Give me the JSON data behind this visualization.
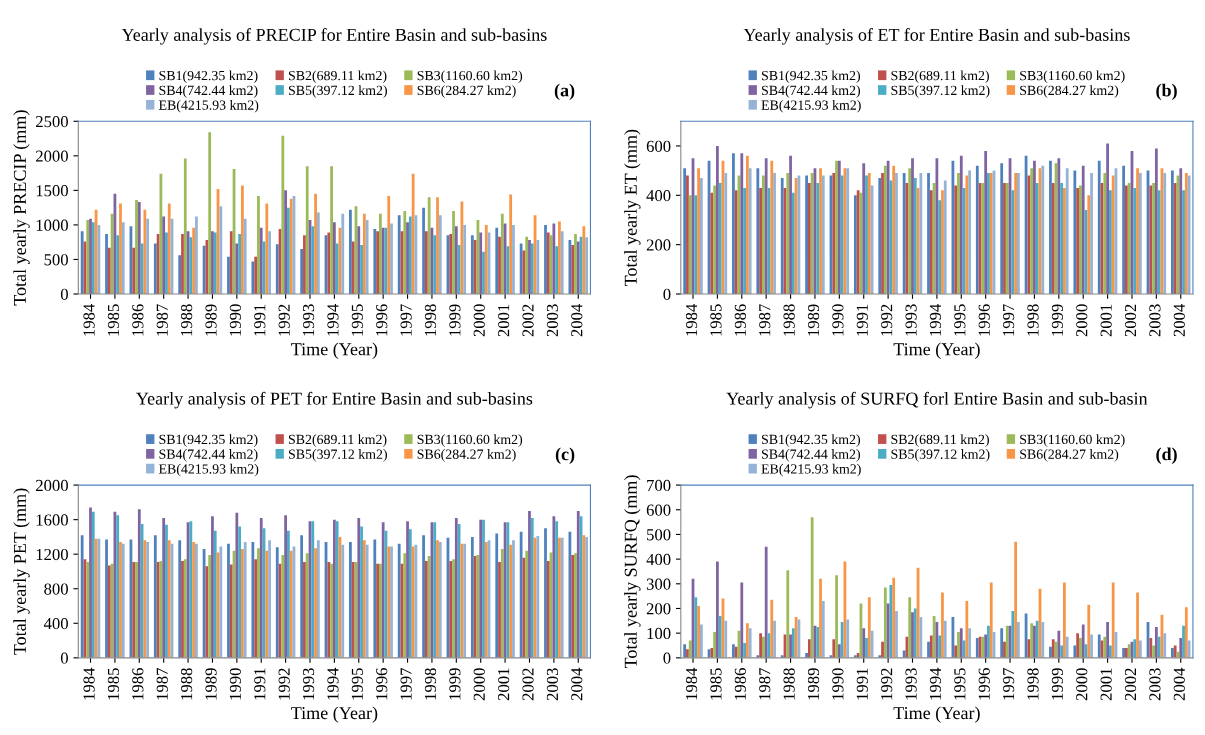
{
  "chart_data": [
    {
      "type": "bar",
      "title": "Yearly analysis of PRECIP for Entire Basin and sub-basins",
      "xlabel": "Time (Year)",
      "ylabel": "Total yearly PRECIP (mm)",
      "annotations": [
        "(a)"
      ],
      "legend": "top",
      "grid": false,
      "categories": [
        "1984",
        "1985",
        "1986",
        "1987",
        "1988",
        "1989",
        "1990",
        "1991",
        "1992",
        "1993",
        "1994",
        "1995",
        "1996",
        "1997",
        "1998",
        "1999",
        "2000",
        "2001",
        "2002",
        "2003",
        "2004"
      ],
      "ylim": [
        0,
        2500
      ],
      "yticks": [
        0,
        500,
        1000,
        1500,
        2000,
        2500
      ],
      "series": [
        {
          "name": "SB1(942.35 km2)",
          "color": "#4f81bd",
          "values": [
            910,
            870,
            980,
            730,
            560,
            700,
            540,
            470,
            720,
            650,
            850,
            1220,
            940,
            1140,
            1250,
            850,
            850,
            960,
            730,
            1000,
            780
          ]
        },
        {
          "name": "SB2(689.11 km2)",
          "color": "#c0504d",
          "values": [
            760,
            670,
            670,
            870,
            870,
            780,
            910,
            540,
            940,
            850,
            890,
            760,
            910,
            910,
            910,
            870,
            780,
            830,
            630,
            890,
            710
          ]
        },
        {
          "name": "SB3(1160.60 km2)",
          "color": "#9bbb59",
          "values": [
            1070,
            1160,
            1360,
            1740,
            1960,
            2340,
            1810,
            1420,
            2290,
            1850,
            1850,
            1270,
            1160,
            1200,
            1400,
            1200,
            1070,
            1160,
            830,
            850,
            870
          ]
        },
        {
          "name": "SB4(742.44 km2)",
          "color": "#8064a2",
          "values": [
            1090,
            1450,
            1330,
            1120,
            910,
            910,
            730,
            960,
            1500,
            1070,
            1040,
            980,
            960,
            1040,
            960,
            980,
            890,
            1020,
            780,
            1020,
            760
          ]
        },
        {
          "name": "SB5(397.12 km2)",
          "color": "#4bacc6",
          "values": [
            1040,
            850,
            730,
            890,
            820,
            890,
            870,
            760,
            1250,
            980,
            730,
            710,
            960,
            1120,
            850,
            710,
            610,
            690,
            730,
            690,
            830
          ]
        },
        {
          "name": "SB6(284.27 km2)",
          "color": "#f79646",
          "values": [
            1220,
            1310,
            1220,
            1310,
            960,
            1520,
            1570,
            1310,
            1380,
            1450,
            960,
            1160,
            1420,
            1740,
            1400,
            1340,
            1000,
            1440,
            1140,
            1050,
            980
          ]
        },
        {
          "name": "EB(4215.93 km2)",
          "color": "#95b3d7",
          "values": [
            1000,
            1040,
            1090,
            1090,
            1120,
            1270,
            1090,
            910,
            1420,
            1180,
            1160,
            1070,
            1020,
            1140,
            1140,
            1000,
            890,
            1000,
            780,
            910,
            820
          ]
        }
      ]
    },
    {
      "type": "bar",
      "title": "Yearly analysis of ET for Entire Basin and sub-basins",
      "xlabel": "Time (Year)",
      "ylabel": "Total yearly ET (mm)",
      "annotations": [
        "(b)"
      ],
      "legend": "top",
      "grid": false,
      "categories": [
        "1984",
        "1985",
        "1986",
        "1987",
        "1988",
        "1989",
        "1990",
        "1991",
        "1992",
        "1993",
        "1994",
        "1995",
        "1996",
        "1997",
        "1998",
        "1999",
        "2000",
        "2001",
        "2002",
        "2003",
        "2004"
      ],
      "ylim": [
        0,
        700
      ],
      "yticks": [
        0,
        200,
        400,
        600
      ],
      "series": [
        {
          "name": "SB1(942.35 km2)",
          "color": "#4f81bd",
          "values": [
            510,
            540,
            570,
            510,
            470,
            480,
            480,
            400,
            470,
            490,
            490,
            540,
            520,
            530,
            560,
            540,
            500,
            540,
            520,
            500,
            500
          ]
        },
        {
          "name": "SB2(689.11 km2)",
          "color": "#c0504d",
          "values": [
            480,
            410,
            420,
            430,
            430,
            450,
            490,
            420,
            490,
            450,
            420,
            440,
            450,
            450,
            480,
            450,
            430,
            450,
            440,
            440,
            450
          ]
        },
        {
          "name": "SB3(1160.60 km2)",
          "color": "#9bbb59",
          "values": [
            400,
            440,
            480,
            480,
            490,
            490,
            540,
            410,
            520,
            510,
            450,
            490,
            450,
            450,
            510,
            530,
            440,
            490,
            450,
            450,
            480
          ]
        },
        {
          "name": "SB4(742.44 km2)",
          "color": "#8064a2",
          "values": [
            550,
            600,
            570,
            550,
            560,
            510,
            540,
            530,
            540,
            550,
            550,
            560,
            580,
            550,
            540,
            550,
            520,
            610,
            580,
            590,
            510
          ]
        },
        {
          "name": "SB5(397.12 km2)",
          "color": "#4bacc6",
          "values": [
            400,
            450,
            430,
            430,
            410,
            450,
            480,
            480,
            460,
            470,
            380,
            430,
            490,
            420,
            450,
            450,
            340,
            420,
            430,
            420,
            420
          ]
        },
        {
          "name": "SB6(284.27 km2)",
          "color": "#f79646",
          "values": [
            510,
            540,
            560,
            540,
            470,
            510,
            510,
            490,
            520,
            430,
            420,
            480,
            490,
            490,
            510,
            430,
            400,
            480,
            510,
            510,
            490
          ]
        },
        {
          "name": "EB(4215.93 km2)",
          "color": "#95b3d7",
          "values": [
            470,
            490,
            510,
            490,
            480,
            480,
            510,
            440,
            490,
            490,
            460,
            500,
            500,
            490,
            520,
            510,
            490,
            510,
            490,
            490,
            480
          ]
        }
      ]
    },
    {
      "type": "bar",
      "title": "Yearly analysis of PET for Entire Basin and sub-basins",
      "xlabel": "Time (Year)",
      "ylabel": "Total yearly PET (mm)",
      "annotations": [
        "(c)"
      ],
      "legend": "top",
      "grid": false,
      "categories": [
        "1984",
        "1985",
        "1986",
        "1987",
        "1988",
        "1989",
        "1990",
        "1991",
        "1992",
        "1993",
        "1994",
        "1995",
        "1996",
        "1997",
        "1998",
        "1999",
        "2000",
        "2001",
        "2002",
        "2003",
        "2004"
      ],
      "ylim": [
        0,
        2000
      ],
      "yticks": [
        0,
        400,
        800,
        1200,
        1600,
        2000
      ],
      "series": [
        {
          "name": "SB1(942.35 km2)",
          "color": "#4f81bd",
          "values": [
            1420,
            1370,
            1370,
            1420,
            1360,
            1260,
            1320,
            1340,
            1280,
            1420,
            1340,
            1340,
            1370,
            1320,
            1420,
            1390,
            1400,
            1440,
            1460,
            1500,
            1460
          ]
        },
        {
          "name": "SB2(689.11 km2)",
          "color": "#c0504d",
          "values": [
            1140,
            1070,
            1110,
            1110,
            1120,
            1060,
            1080,
            1140,
            1090,
            1110,
            1110,
            1110,
            1090,
            1090,
            1120,
            1120,
            1180,
            1110,
            1160,
            1120,
            1190
          ]
        },
        {
          "name": "SB3(1160.60 km2)",
          "color": "#9bbb59",
          "values": [
            1110,
            1090,
            1110,
            1120,
            1140,
            1190,
            1240,
            1270,
            1190,
            1210,
            1090,
            1110,
            1090,
            1210,
            1180,
            1140,
            1190,
            1260,
            1240,
            1220,
            1210
          ]
        },
        {
          "name": "SB4(742.44 km2)",
          "color": "#8064a2",
          "values": [
            1740,
            1690,
            1720,
            1620,
            1570,
            1640,
            1680,
            1620,
            1650,
            1580,
            1600,
            1620,
            1570,
            1580,
            1570,
            1620,
            1600,
            1570,
            1700,
            1640,
            1700
          ]
        },
        {
          "name": "SB5(397.12 km2)",
          "color": "#4bacc6",
          "values": [
            1690,
            1650,
            1550,
            1540,
            1580,
            1470,
            1520,
            1500,
            1470,
            1580,
            1580,
            1520,
            1470,
            1490,
            1570,
            1550,
            1600,
            1570,
            1620,
            1580,
            1640
          ]
        },
        {
          "name": "SB6(284.27 km2)",
          "color": "#f79646",
          "values": [
            1380,
            1340,
            1360,
            1360,
            1340,
            1220,
            1260,
            1240,
            1240,
            1270,
            1400,
            1360,
            1290,
            1290,
            1360,
            1320,
            1340,
            1310,
            1390,
            1390,
            1420
          ]
        },
        {
          "name": "EB(4215.93 km2)",
          "color": "#95b3d7",
          "values": [
            1380,
            1320,
            1340,
            1320,
            1320,
            1290,
            1340,
            1360,
            1290,
            1360,
            1310,
            1310,
            1290,
            1310,
            1340,
            1320,
            1360,
            1360,
            1410,
            1390,
            1400
          ]
        }
      ]
    },
    {
      "type": "bar",
      "title": "Yearly analysis of SURFQ forl Entire Basin and sub-basin",
      "xlabel": "Time (Year)",
      "ylabel": "Total yearly SURFQ (mm)",
      "annotations": [
        "(d)"
      ],
      "legend": "top",
      "grid": false,
      "categories": [
        "1984",
        "1985",
        "1986",
        "1987",
        "1988",
        "1989",
        "1990",
        "1991",
        "1992",
        "1993",
        "1994",
        "1995",
        "1996",
        "1997",
        "1998",
        "1999",
        "2000",
        "2001",
        "2002",
        "2003",
        "2004"
      ],
      "ylim": [
        0,
        700
      ],
      "yticks": [
        0,
        100,
        200,
        300,
        400,
        500,
        600,
        700
      ],
      "series": [
        {
          "name": "SB1(942.35 km2)",
          "color": "#4f81bd",
          "values": [
            55,
            35,
            55,
            10,
            10,
            20,
            10,
            10,
            10,
            30,
            65,
            165,
            80,
            120,
            180,
            45,
            50,
            95,
            40,
            145,
            40
          ]
        },
        {
          "name": "SB2(689.11 km2)",
          "color": "#c0504d",
          "values": [
            35,
            40,
            45,
            100,
            95,
            75,
            75,
            20,
            65,
            85,
            90,
            50,
            85,
            65,
            75,
            75,
            100,
            70,
            40,
            80,
            50
          ]
        },
        {
          "name": "SB3(1160.60 km2)",
          "color": "#9bbb59",
          "values": [
            70,
            105,
            110,
            85,
            355,
            570,
            335,
            220,
            285,
            245,
            170,
            105,
            85,
            130,
            140,
            65,
            80,
            85,
            55,
            50,
            25
          ]
        },
        {
          "name": "SB4(742.44 km2)",
          "color": "#8064a2",
          "values": [
            320,
            390,
            305,
            450,
            95,
            130,
            55,
            120,
            220,
            185,
            145,
            120,
            95,
            130,
            130,
            110,
            135,
            145,
            65,
            125,
            80
          ]
        },
        {
          "name": "SB5(397.12 km2)",
          "color": "#4bacc6",
          "values": [
            245,
            170,
            60,
            100,
            120,
            125,
            145,
            80,
            295,
            200,
            90,
            70,
            130,
            190,
            150,
            50,
            55,
            50,
            75,
            85,
            130
          ]
        },
        {
          "name": "SB6(284.27 km2)",
          "color": "#f79646",
          "values": [
            210,
            240,
            140,
            235,
            165,
            320,
            390,
            245,
            325,
            365,
            265,
            230,
            305,
            470,
            280,
            305,
            215,
            305,
            265,
            175,
            205
          ]
        },
        {
          "name": "EB(4215.93 km2)",
          "color": "#95b3d7",
          "values": [
            135,
            150,
            120,
            150,
            155,
            230,
            155,
            110,
            190,
            165,
            150,
            120,
            105,
            145,
            145,
            85,
            95,
            105,
            70,
            100,
            70
          ]
        }
      ]
    }
  ]
}
